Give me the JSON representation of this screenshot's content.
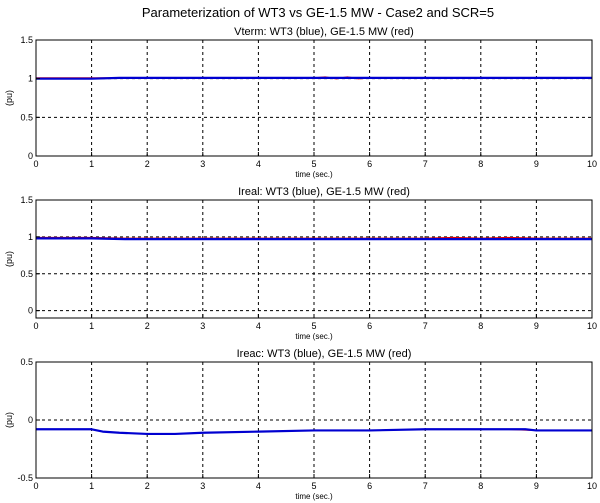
{
  "figure_title": "Parameterization of WT3 vs GE-1.5 MW - Case2 and  SCR=5",
  "colors": {
    "wt3": "#0000d0",
    "ge": "#e00000",
    "axis": "#000000",
    "grid": "#000000",
    "background": "#ffffff"
  },
  "chart_data": [
    {
      "type": "line",
      "title": "Vterm: WT3 (blue), GE-1.5 MW (red)",
      "xlabel": "time (sec.)",
      "ylabel": "(pu)",
      "xlim": [
        0,
        10
      ],
      "ylim": [
        0,
        1.5
      ],
      "xticks": [
        0,
        1,
        2,
        3,
        4,
        5,
        6,
        7,
        8,
        9,
        10
      ],
      "yticks": [
        0,
        0.5,
        1,
        1.5
      ],
      "ytick_labels": [
        "0",
        "0.5",
        "1",
        "1.5"
      ],
      "grid": true,
      "series": [
        {
          "color_key": "ge",
          "x": [
            0,
            1,
            2,
            3,
            4,
            5,
            5.2,
            5.4,
            5.6,
            5.8,
            6,
            7,
            8,
            9,
            10
          ],
          "y": [
            1.01,
            1.01,
            1.01,
            1.01,
            1.01,
            1.01,
            1.02,
            1.0,
            1.02,
            1.0,
            1.01,
            1.01,
            1.01,
            1.01,
            1.01
          ]
        },
        {
          "color_key": "wt3",
          "x": [
            0,
            1,
            1.5,
            2,
            3,
            4,
            5,
            6,
            7,
            8,
            9,
            10
          ],
          "y": [
            1.0,
            1.0,
            1.01,
            1.01,
            1.01,
            1.01,
            1.01,
            1.01,
            1.01,
            1.01,
            1.01,
            1.01
          ]
        }
      ]
    },
    {
      "type": "line",
      "title": "Ireal: WT3 (blue), GE-1.5 MW (red)",
      "xlabel": "time (sec.)",
      "ylabel": "(pu)",
      "xlim": [
        0,
        10
      ],
      "ylim": [
        -0.1,
        1.5
      ],
      "xticks": [
        0,
        1,
        2,
        3,
        4,
        5,
        6,
        7,
        8,
        9,
        10
      ],
      "yticks": [
        0,
        0.5,
        1,
        1.5
      ],
      "ytick_labels": [
        "0",
        "0.5",
        "1",
        "1.5"
      ],
      "grid": true,
      "series": [
        {
          "color_key": "ge",
          "x": [
            0,
            1,
            1.6,
            2,
            3,
            4,
            5,
            6,
            7,
            7.5,
            8,
            8.5,
            9,
            10
          ],
          "y": [
            0.99,
            0.99,
            0.98,
            0.98,
            0.98,
            0.98,
            0.98,
            0.98,
            0.98,
            0.99,
            0.98,
            0.99,
            0.98,
            0.98
          ]
        },
        {
          "color_key": "wt3",
          "x": [
            0,
            1,
            1.6,
            2,
            3,
            4,
            5,
            6,
            7,
            8,
            9,
            10
          ],
          "y": [
            0.98,
            0.98,
            0.97,
            0.97,
            0.97,
            0.97,
            0.97,
            0.97,
            0.97,
            0.97,
            0.97,
            0.97
          ]
        }
      ]
    },
    {
      "type": "line",
      "title": "Ireac: WT3 (blue), GE-1.5 MW (red)",
      "xlabel": "time (sec.)",
      "ylabel": "(pu)",
      "xlim": [
        0,
        10
      ],
      "ylim": [
        -0.5,
        0.5
      ],
      "xticks": [
        0,
        1,
        2,
        3,
        4,
        5,
        6,
        7,
        8,
        9,
        10
      ],
      "yticks": [
        -0.5,
        0,
        0.5
      ],
      "ytick_labels": [
        "-0.5",
        "0",
        "0.5"
      ],
      "grid": true,
      "series": [
        {
          "color_key": "ge",
          "x": [
            0,
            1,
            1.2,
            1.5,
            2,
            2.5,
            3,
            4,
            5,
            6,
            7,
            8,
            8.5,
            9,
            10
          ],
          "y": [
            -0.08,
            -0.08,
            -0.1,
            -0.11,
            -0.12,
            -0.12,
            -0.11,
            -0.1,
            -0.09,
            -0.09,
            -0.08,
            -0.08,
            -0.08,
            -0.09,
            -0.09
          ]
        },
        {
          "color_key": "wt3",
          "x": [
            0,
            1,
            1.2,
            1.5,
            2,
            2.5,
            3,
            4,
            5,
            6,
            7,
            8,
            8.8,
            9,
            10
          ],
          "y": [
            -0.08,
            -0.08,
            -0.1,
            -0.11,
            -0.12,
            -0.12,
            -0.11,
            -0.1,
            -0.09,
            -0.09,
            -0.08,
            -0.08,
            -0.08,
            -0.09,
            -0.09
          ]
        }
      ]
    }
  ]
}
